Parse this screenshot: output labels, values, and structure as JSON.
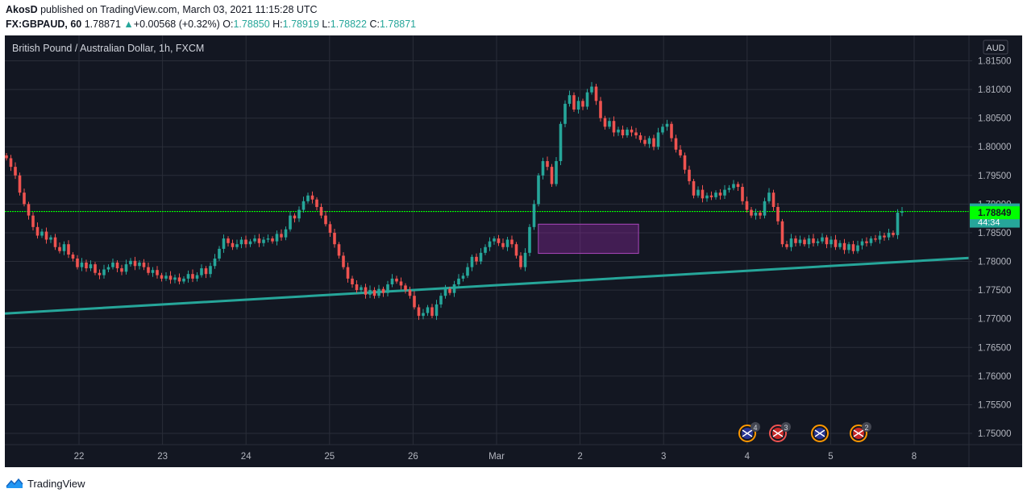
{
  "header": {
    "author": "AkosD",
    "published_text": "published on TradingView.com, March 03, 2021 11:15:28 UTC",
    "symbol": "FX:GBPAUD, 60",
    "last": "1.78871",
    "change": "+0.00568 (+0.32%)",
    "o_label": "O:",
    "o_value": "1.78850",
    "h_label": "H:",
    "h_value": "1.78919",
    "l_label": "L:",
    "l_value": "1.78822",
    "c_label": "C:",
    "c_value": "1.78871"
  },
  "footer": {
    "brand": "TradingView"
  },
  "colors": {
    "background": "#131722",
    "grid": "#2a2e39",
    "up": "#26a69a",
    "down": "#ef5350",
    "price_line": "#00ff00",
    "trendline": "#26a69a",
    "box_fill": "#9c27b0",
    "text": "#b2b5be"
  },
  "chart_data": {
    "type": "candlestick",
    "title": "British Pound / Australian Dollar, 1h, FXCM",
    "currency": "AUD",
    "ylim": [
      1.747,
      1.816
    ],
    "y_ticks": [
      "1.81500",
      "1.81000",
      "1.80500",
      "1.80000",
      "1.79500",
      "1.79000",
      "1.78500",
      "1.78000",
      "1.77500",
      "1.77000",
      "1.76500",
      "1.76000",
      "1.75500",
      "1.75000"
    ],
    "x_ticks": [
      "22",
      "23",
      "24",
      "25",
      "26",
      "Mar",
      "2",
      "3",
      "4",
      "5",
      "8"
    ],
    "last_price": "1.78871",
    "countdown": "44:34",
    "marker_price": "1.78849",
    "horizontal_line": 1.78871,
    "trendline": {
      "start": 1.7709,
      "end": 1.7806
    },
    "range_box": {
      "top": 1.7865,
      "bottom": 1.7814,
      "from": "Mar 2",
      "to": "Mar 3"
    },
    "events": [
      {
        "flag": "AU",
        "count": "4"
      },
      {
        "flag": "UK",
        "count": "3"
      },
      {
        "flag": "AU",
        "count": ""
      },
      {
        "flag": "UK",
        "count": "2"
      }
    ],
    "closes": [
      1.798,
      1.7965,
      1.795,
      1.792,
      1.79,
      1.788,
      1.786,
      1.7845,
      1.7852,
      1.7838,
      1.7842,
      1.7825,
      1.7818,
      1.783,
      1.7812,
      1.7805,
      1.779,
      1.7798,
      1.7788,
      1.7795,
      1.778,
      1.7776,
      1.7786,
      1.779,
      1.7798,
      1.7788,
      1.7782,
      1.7795,
      1.7801,
      1.7792,
      1.7798,
      1.779,
      1.778,
      1.7785,
      1.7776,
      1.777,
      1.7775,
      1.7768,
      1.7772,
      1.7765,
      1.777,
      1.7778,
      1.777,
      1.7776,
      1.7788,
      1.7778,
      1.7792,
      1.7805,
      1.7822,
      1.784,
      1.7832,
      1.7825,
      1.783,
      1.7838,
      1.783,
      1.7835,
      1.784,
      1.7832,
      1.7838,
      1.784,
      1.7835,
      1.7848,
      1.7842,
      1.7856,
      1.788,
      1.7875,
      1.789,
      1.7905,
      1.7915,
      1.7908,
      1.7895,
      1.788,
      1.7865,
      1.785,
      1.783,
      1.781,
      1.779,
      1.777,
      1.776,
      1.775,
      1.7755,
      1.7742,
      1.775,
      1.774,
      1.7752,
      1.7745,
      1.776,
      1.777,
      1.7765,
      1.7758,
      1.775,
      1.774,
      1.772,
      1.7705,
      1.771,
      1.772,
      1.7705,
      1.7725,
      1.774,
      1.7752,
      1.7745,
      1.776,
      1.777,
      1.7775,
      1.779,
      1.7808,
      1.78,
      1.7815,
      1.7825,
      1.7835,
      1.784,
      1.7832,
      1.7825,
      1.7838,
      1.783,
      1.781,
      1.779,
      1.7815,
      1.786,
      1.79,
      1.795,
      1.7975,
      1.7965,
      1.7935,
      1.7975,
      1.804,
      1.8075,
      1.809,
      1.8065,
      1.808,
      1.807,
      1.8095,
      1.8105,
      1.808,
      1.805,
      1.8035,
      1.8045,
      1.8025,
      1.803,
      1.802,
      1.803,
      1.8025,
      1.802,
      1.8012,
      1.8005,
      1.8015,
      1.8,
      1.8025,
      1.8035,
      1.804,
      1.8015,
      1.7995,
      1.7985,
      1.796,
      1.794,
      1.7915,
      1.7925,
      1.791,
      1.7915,
      1.7912,
      1.792,
      1.7915,
      1.7925,
      1.7928,
      1.7935,
      1.793,
      1.7905,
      1.789,
      1.788,
      1.7885,
      1.788,
      1.7905,
      1.792,
      1.7895,
      1.787,
      1.783,
      1.7825,
      1.784,
      1.7832,
      1.7838,
      1.783,
      1.784,
      1.7832,
      1.7835,
      1.7842,
      1.783,
      1.7838,
      1.7825,
      1.7832,
      1.782,
      1.783,
      1.7818,
      1.7828,
      1.7835,
      1.7832,
      1.784,
      1.7838,
      1.7845,
      1.7842,
      1.785,
      1.7846,
      1.7885,
      1.7887
    ]
  }
}
